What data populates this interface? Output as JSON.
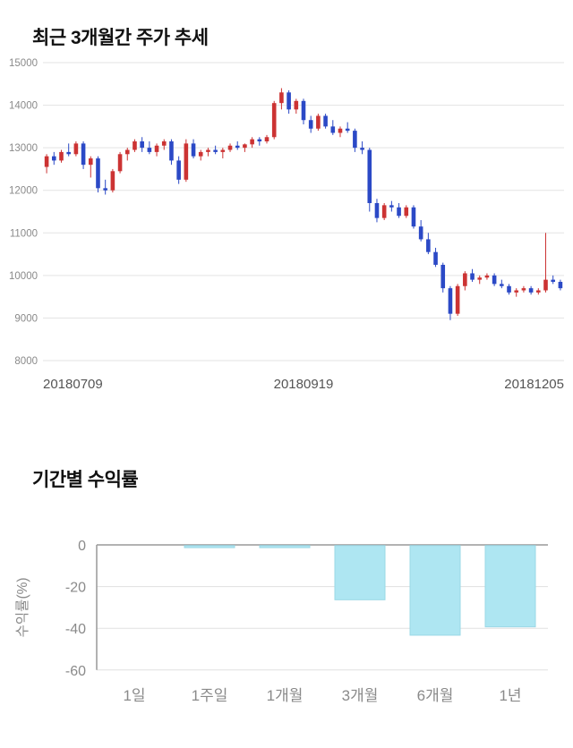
{
  "price_section": {
    "title": "최근 3개월간 주가 추세"
  },
  "returns_section": {
    "title": "기간별 수익률"
  },
  "chart_data": [
    {
      "type": "candlestick",
      "title": "최근 3개월간 주가 추세",
      "ylim": [
        8000,
        15000
      ],
      "yticks": [
        8000,
        9000,
        10000,
        11000,
        12000,
        13000,
        14000,
        15000
      ],
      "xtick_labels": [
        "20180709",
        "20180919",
        "20181205"
      ],
      "up_color": "#cc3333",
      "down_color": "#2b49c6",
      "grid_color": "#e3e3e3",
      "tick_text_color": "#8a8a8a",
      "xlabel_text_color": "#555555",
      "candles": [
        [
          12550,
          12850,
          12400,
          12800
        ],
        [
          12800,
          12900,
          12600,
          12700
        ],
        [
          12700,
          12950,
          12650,
          12900
        ],
        [
          12900,
          13100,
          12800,
          12850
        ],
        [
          12850,
          13150,
          12800,
          13100
        ],
        [
          13100,
          13150,
          12500,
          12600
        ],
        [
          12600,
          12800,
          12300,
          12750
        ],
        [
          12750,
          12800,
          11950,
          12050
        ],
        [
          12050,
          12250,
          11900,
          12000
        ],
        [
          12000,
          12500,
          11950,
          12450
        ],
        [
          12450,
          12900,
          12400,
          12850
        ],
        [
          12850,
          13000,
          12700,
          12950
        ],
        [
          12950,
          13200,
          12900,
          13150
        ],
        [
          13150,
          13250,
          12900,
          13000
        ],
        [
          13000,
          13150,
          12850,
          12900
        ],
        [
          12900,
          13100,
          12800,
          13050
        ],
        [
          13050,
          13200,
          12950,
          13150
        ],
        [
          13150,
          13200,
          12600,
          12700
        ],
        [
          12700,
          12800,
          12150,
          12250
        ],
        [
          12250,
          13200,
          12200,
          13100
        ],
        [
          13100,
          13200,
          12750,
          12800
        ],
        [
          12800,
          12950,
          12700,
          12900
        ],
        [
          12900,
          13000,
          12800,
          12950
        ],
        [
          12950,
          13050,
          12850,
          12900
        ],
        [
          12900,
          13000,
          12750,
          12950
        ],
        [
          12950,
          13100,
          12900,
          13050
        ],
        [
          13050,
          13150,
          12950,
          13000
        ],
        [
          13000,
          13100,
          12900,
          13080
        ],
        [
          13080,
          13250,
          13000,
          13200
        ],
        [
          13200,
          13250,
          13050,
          13150
        ],
        [
          13150,
          13300,
          13100,
          13250
        ],
        [
          13250,
          14100,
          13200,
          14050
        ],
        [
          14050,
          14400,
          13900,
          14300
        ],
        [
          14300,
          14350,
          13800,
          13900
        ],
        [
          13900,
          14150,
          13800,
          14100
        ],
        [
          14100,
          14150,
          13550,
          13650
        ],
        [
          13650,
          13750,
          13350,
          13450
        ],
        [
          13450,
          13800,
          13400,
          13750
        ],
        [
          13750,
          13800,
          13450,
          13500
        ],
        [
          13500,
          13650,
          13300,
          13350
        ],
        [
          13350,
          13500,
          13250,
          13450
        ],
        [
          13450,
          13600,
          13350,
          13400
        ],
        [
          13400,
          13450,
          12900,
          13000
        ],
        [
          13000,
          13150,
          12850,
          12950
        ],
        [
          12950,
          13000,
          11500,
          11700
        ],
        [
          11700,
          11800,
          11250,
          11350
        ],
        [
          11350,
          11700,
          11300,
          11650
        ],
        [
          11650,
          11750,
          11500,
          11600
        ],
        [
          11600,
          11700,
          11350,
          11400
        ],
        [
          11400,
          11650,
          11350,
          11600
        ],
        [
          11600,
          11650,
          11100,
          11150
        ],
        [
          11150,
          11300,
          10800,
          10850
        ],
        [
          10850,
          11000,
          10500,
          10550
        ],
        [
          10550,
          10650,
          10200,
          10250
        ],
        [
          10250,
          10300,
          9600,
          9700
        ],
        [
          9700,
          9750,
          8950,
          9100
        ],
        [
          9100,
          9800,
          9050,
          9750
        ],
        [
          9750,
          10100,
          9650,
          10050
        ],
        [
          10050,
          10150,
          9850,
          9900
        ],
        [
          9900,
          10000,
          9800,
          9950
        ],
        [
          9950,
          10050,
          9900,
          10000
        ],
        [
          10000,
          10050,
          9750,
          9800
        ],
        [
          9800,
          9900,
          9700,
          9750
        ],
        [
          9750,
          9800,
          9550,
          9600
        ],
        [
          9600,
          9700,
          9500,
          9650
        ],
        [
          9650,
          9750,
          9600,
          9700
        ],
        [
          9700,
          9750,
          9550,
          9600
        ],
        [
          9600,
          9700,
          9550,
          9650
        ],
        [
          9650,
          11000,
          9600,
          9900
        ],
        [
          9900,
          10000,
          9800,
          9850
        ],
        [
          9850,
          9900,
          9650,
          9700
        ]
      ]
    },
    {
      "type": "bar",
      "title": "기간별 수익률",
      "categories": [
        "1일",
        "1주일",
        "1개월",
        "3개월",
        "6개월",
        "1년"
      ],
      "values": [
        0,
        -1,
        -1,
        -26,
        -43,
        -39
      ],
      "ylabel": "수익률(%)",
      "ylim": [
        -60,
        0
      ],
      "yticks": [
        0,
        -20,
        -40,
        -60
      ],
      "bar_color": "#aee6f2",
      "bar_edge": "#9bd8e6",
      "grid_color": "#e0e0e0",
      "axis_color": "#999999",
      "tick_text_color": "#8a8a8a",
      "legend": "none",
      "grid": "on"
    }
  ]
}
